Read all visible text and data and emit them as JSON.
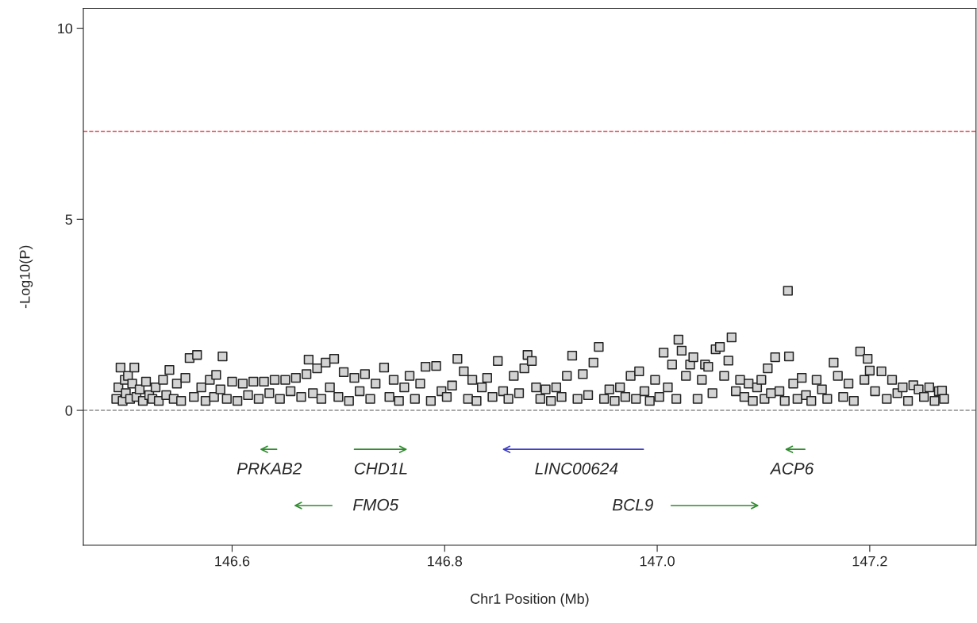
{
  "chart_data": {
    "type": "scatter",
    "xlabel": "Chr1 Position (Mb)",
    "ylabel": "-Log10(P)",
    "xlim": [
      146.46,
      147.3
    ],
    "xticks": [
      146.6,
      146.8,
      {
        "value": 147.0,
        "label": "147.0"
      },
      147.2
    ],
    "ylim": [
      -3.53,
      10.52
    ],
    "yticks": [
      0,
      5,
      10
    ],
    "grid": false,
    "legend": false,
    "ref_lines": [
      {
        "axis": "y",
        "value": 7.3,
        "color": "#e8505b",
        "line_style": "dashed"
      },
      {
        "axis": "y",
        "value": 0,
        "color": "#8c8c8c",
        "line_style": "dashed"
      }
    ],
    "series": [
      {
        "marker": "square",
        "color": "#d3d3d3",
        "x": [
          146.491,
          146.493,
          146.495,
          146.497,
          146.499,
          146.5,
          146.502,
          146.504,
          146.506,
          146.508,
          146.51,
          146.513,
          146.516,
          146.519,
          146.522,
          146.525,
          146.528,
          146.531,
          146.535,
          146.538,
          146.541,
          146.545,
          146.548,
          146.552,
          146.556,
          146.56,
          146.564,
          146.567,
          146.571,
          146.575,
          146.579,
          146.583,
          146.585,
          146.589,
          146.591,
          146.595,
          146.6,
          146.605,
          146.61,
          146.615,
          146.62,
          146.625,
          146.63,
          146.635,
          146.64,
          146.645,
          146.65,
          146.655,
          146.66,
          146.665,
          146.67,
          146.672,
          146.676,
          146.68,
          146.684,
          146.688,
          146.692,
          146.696,
          146.7,
          146.705,
          146.71,
          146.715,
          146.72,
          146.725,
          146.73,
          146.735,
          146.743,
          146.748,
          146.752,
          146.757,
          146.762,
          146.767,
          146.772,
          146.777,
          146.782,
          146.787,
          146.792,
          146.797,
          146.802,
          146.807,
          146.812,
          146.818,
          146.822,
          146.826,
          146.83,
          146.835,
          146.84,
          146.845,
          146.85,
          146.855,
          146.86,
          146.865,
          146.87,
          146.875,
          146.878,
          146.882,
          146.886,
          146.89,
          146.895,
          146.9,
          146.905,
          146.91,
          146.915,
          146.92,
          146.925,
          146.93,
          146.935,
          146.94,
          146.945,
          146.95,
          146.955,
          146.96,
          146.965,
          146.97,
          146.975,
          146.98,
          146.983,
          146.988,
          146.993,
          146.998,
          147.002,
          147.006,
          147.01,
          147.014,
          147.018,
          147.02,
          147.023,
          147.027,
          147.031,
          147.034,
          147.038,
          147.042,
          147.045,
          147.048,
          147.052,
          147.055,
          147.059,
          147.063,
          147.067,
          147.07,
          147.074,
          147.078,
          147.082,
          147.086,
          147.09,
          147.094,
          147.098,
          147.101,
          147.104,
          147.107,
          147.111,
          147.115,
          147.12,
          147.123,
          147.124,
          147.128,
          147.132,
          147.136,
          147.14,
          147.145,
          147.15,
          147.155,
          147.16,
          147.166,
          147.17,
          147.175,
          147.18,
          147.185,
          147.191,
          147.195,
          147.198,
          147.2,
          147.205,
          147.211,
          147.216,
          147.221,
          147.226,
          147.231,
          147.236,
          147.241,
          147.246,
          147.251,
          147.256,
          147.261,
          147.265,
          147.268,
          147.27
        ],
        "values": [
          0.3,
          0.6,
          1.12,
          0.25,
          0.8,
          0.45,
          0.9,
          0.3,
          0.7,
          1.12,
          0.35,
          0.55,
          0.25,
          0.75,
          0.4,
          0.3,
          0.6,
          0.25,
          0.8,
          0.4,
          1.06,
          0.3,
          0.7,
          0.25,
          0.85,
          1.37,
          0.35,
          1.45,
          0.6,
          0.25,
          0.8,
          0.35,
          0.93,
          0.55,
          1.41,
          0.3,
          0.75,
          0.25,
          0.7,
          0.4,
          0.75,
          0.3,
          0.75,
          0.45,
          0.8,
          0.3,
          0.8,
          0.5,
          0.85,
          0.35,
          0.95,
          1.33,
          0.45,
          1.1,
          0.3,
          1.25,
          0.6,
          1.35,
          0.35,
          1.0,
          0.25,
          0.85,
          0.5,
          0.95,
          0.3,
          0.7,
          1.12,
          0.35,
          0.8,
          0.25,
          0.6,
          0.9,
          0.3,
          0.7,
          1.14,
          0.25,
          1.16,
          0.5,
          0.35,
          0.65,
          1.35,
          1.02,
          0.3,
          0.8,
          0.25,
          0.6,
          0.85,
          0.35,
          1.29,
          0.5,
          0.3,
          0.9,
          0.45,
          1.1,
          1.45,
          1.29,
          0.6,
          0.3,
          0.55,
          0.25,
          0.6,
          0.35,
          0.9,
          1.43,
          0.3,
          0.95,
          0.4,
          1.25,
          1.66,
          0.3,
          0.55,
          0.25,
          0.6,
          0.35,
          0.9,
          0.3,
          1.02,
          0.5,
          0.25,
          0.8,
          0.35,
          1.51,
          0.6,
          1.2,
          0.3,
          1.85,
          1.56,
          0.9,
          1.2,
          1.39,
          0.3,
          0.8,
          1.2,
          1.14,
          0.45,
          1.6,
          1.66,
          0.9,
          1.3,
          1.91,
          0.5,
          0.8,
          0.35,
          0.7,
          0.25,
          0.6,
          0.8,
          0.3,
          1.1,
          0.45,
          1.39,
          0.5,
          0.25,
          3.13,
          1.41,
          0.7,
          0.3,
          0.85,
          0.4,
          0.25,
          0.8,
          0.55,
          0.3,
          1.25,
          0.9,
          0.35,
          0.7,
          0.25,
          1.54,
          0.8,
          1.35,
          1.04,
          0.5,
          1.02,
          0.3,
          0.8,
          0.45,
          0.6,
          0.25,
          0.66,
          0.55,
          0.35,
          0.6,
          0.25,
          0.5,
          0.52,
          0.3
        ]
      }
    ],
    "annotations": [
      "PRKAB2",
      "CHD1L",
      "LINC00624",
      "ACP6",
      "FMO5",
      "BCL9"
    ]
  }
}
